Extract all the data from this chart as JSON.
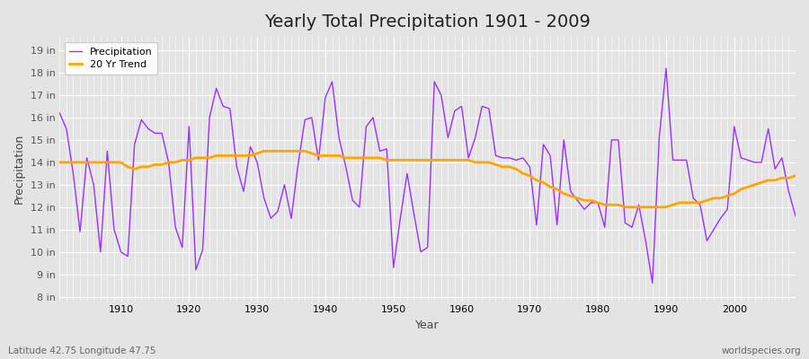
{
  "title": "Yearly Total Precipitation 1901 - 2009",
  "xlabel": "Year",
  "ylabel": "Precipitation",
  "lat_lon_label": "Latitude 42.75 Longitude 47.75",
  "watermark": "worldspecies.org",
  "precip_color": "#9B30FF",
  "trend_color": "#FFA500",
  "bg_color": "#E4E4E4",
  "plot_bg_color": "#E4E4E4",
  "ylim": [
    7.8,
    19.6
  ],
  "yticks": [
    8,
    9,
    10,
    11,
    12,
    13,
    14,
    15,
    16,
    17,
    18,
    19
  ],
  "ytick_labels": [
    "8 in",
    "9 in",
    "10 in",
    "11 in",
    "12 in",
    "13 in",
    "14 in",
    "15 in",
    "16 in",
    "17 in",
    "18 in",
    "19 in"
  ],
  "years": [
    1901,
    1902,
    1903,
    1904,
    1905,
    1906,
    1907,
    1908,
    1909,
    1910,
    1911,
    1912,
    1913,
    1914,
    1915,
    1916,
    1917,
    1918,
    1919,
    1920,
    1921,
    1922,
    1923,
    1924,
    1925,
    1926,
    1927,
    1928,
    1929,
    1930,
    1931,
    1932,
    1933,
    1934,
    1935,
    1936,
    1937,
    1938,
    1939,
    1940,
    1941,
    1942,
    1943,
    1944,
    1945,
    1946,
    1947,
    1948,
    1949,
    1950,
    1951,
    1952,
    1953,
    1954,
    1955,
    1956,
    1957,
    1958,
    1959,
    1960,
    1961,
    1962,
    1963,
    1964,
    1965,
    1966,
    1967,
    1968,
    1969,
    1970,
    1971,
    1972,
    1973,
    1974,
    1975,
    1976,
    1977,
    1978,
    1979,
    1980,
    1981,
    1982,
    1983,
    1984,
    1985,
    1986,
    1987,
    1988,
    1989,
    1990,
    1991,
    1992,
    1993,
    1994,
    1995,
    1996,
    1997,
    1998,
    1999,
    2000,
    2001,
    2002,
    2003,
    2004,
    2005,
    2006,
    2007,
    2008,
    2009
  ],
  "precip": [
    16.2,
    15.5,
    13.5,
    10.9,
    14.2,
    13.0,
    10.0,
    14.5,
    11.0,
    10.0,
    9.8,
    14.8,
    15.9,
    15.5,
    15.3,
    15.3,
    14.0,
    11.1,
    10.2,
    15.6,
    9.2,
    10.1,
    16.0,
    17.3,
    16.5,
    16.4,
    13.8,
    12.7,
    14.7,
    14.0,
    12.4,
    11.5,
    11.8,
    13.0,
    11.5,
    13.9,
    15.9,
    16.0,
    14.1,
    16.9,
    17.6,
    15.1,
    13.8,
    12.3,
    12.0,
    15.6,
    16.0,
    14.5,
    14.6,
    9.3,
    11.5,
    13.5,
    11.7,
    10.0,
    10.2,
    17.6,
    17.0,
    15.1,
    16.3,
    16.5,
    14.2,
    15.1,
    16.5,
    16.4,
    14.3,
    14.2,
    14.2,
    14.1,
    14.2,
    13.8,
    11.2,
    14.8,
    14.3,
    11.2,
    15.0,
    12.7,
    12.3,
    11.9,
    12.2,
    12.2,
    11.1,
    15.0,
    15.0,
    11.3,
    11.1,
    12.1,
    10.5,
    8.6,
    15.1,
    18.2,
    14.1,
    14.1,
    14.1,
    12.4,
    12.1,
    10.5,
    11.0,
    11.5,
    11.9,
    15.6,
    14.2,
    14.1,
    14.0,
    14.0,
    15.5,
    13.7,
    14.2,
    12.7,
    11.6
  ],
  "trend": [
    14.0,
    14.0,
    14.0,
    14.0,
    14.0,
    14.0,
    14.0,
    14.0,
    14.0,
    14.0,
    13.8,
    13.7,
    13.8,
    13.8,
    13.9,
    13.9,
    14.0,
    14.0,
    14.1,
    14.1,
    14.2,
    14.2,
    14.2,
    14.3,
    14.3,
    14.3,
    14.3,
    14.3,
    14.3,
    14.4,
    14.5,
    14.5,
    14.5,
    14.5,
    14.5,
    14.5,
    14.5,
    14.4,
    14.3,
    14.3,
    14.3,
    14.3,
    14.2,
    14.2,
    14.2,
    14.2,
    14.2,
    14.2,
    14.1,
    14.1,
    14.1,
    14.1,
    14.1,
    14.1,
    14.1,
    14.1,
    14.1,
    14.1,
    14.1,
    14.1,
    14.1,
    14.0,
    14.0,
    14.0,
    13.9,
    13.8,
    13.8,
    13.7,
    13.5,
    13.4,
    13.2,
    13.1,
    12.9,
    12.8,
    12.6,
    12.5,
    12.4,
    12.3,
    12.3,
    12.2,
    12.1,
    12.1,
    12.1,
    12.0,
    12.0,
    12.0,
    12.0,
    12.0,
    12.0,
    12.0,
    12.1,
    12.2,
    12.2,
    12.2,
    12.2,
    12.3,
    12.4,
    12.4,
    12.5,
    12.6,
    12.8,
    12.9,
    13.0,
    13.1,
    13.2,
    13.2,
    13.3,
    13.3,
    13.4
  ]
}
